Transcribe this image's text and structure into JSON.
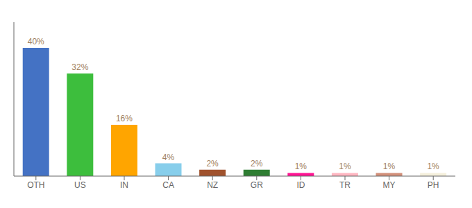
{
  "chart_data": {
    "type": "bar",
    "categories": [
      "OTH",
      "US",
      "IN",
      "CA",
      "NZ",
      "GR",
      "ID",
      "TR",
      "MY",
      "PH"
    ],
    "values": [
      40,
      32,
      16,
      4,
      2,
      2,
      1,
      1,
      1,
      1
    ],
    "value_labels": [
      "40%",
      "32%",
      "16%",
      "4%",
      "2%",
      "2%",
      "1%",
      "1%",
      "1%",
      "1%"
    ],
    "data_labels": true,
    "colors": [
      "#4472C4",
      "#3DBE3D",
      "#FFA500",
      "#87CEEB",
      "#A0522D",
      "#2E7D32",
      "#FF1493",
      "#FFB6C1",
      "#D2907A",
      "#F5F0DC"
    ],
    "ylim": [
      0,
      48
    ],
    "grid": false,
    "tick_labels": "x"
  }
}
